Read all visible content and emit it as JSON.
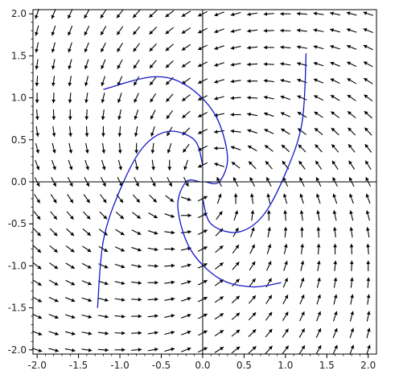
{
  "chart_data": {
    "type": "vector-field",
    "title": "",
    "xlabel": "",
    "ylabel": "",
    "xlim": [
      -2.05,
      2.1
    ],
    "ylim": [
      -2.05,
      2.05
    ],
    "x_ticks": [
      "-2.0",
      "-1.5",
      "-1.0",
      "-0.5",
      "0.0",
      "0.5",
      "1.0",
      "1.5",
      "2.0"
    ],
    "y_ticks": [
      "2.0",
      "1.5",
      "1.0",
      "0.5",
      "0.0",
      "-0.5",
      "-1.0",
      "-1.5",
      "-2.0"
    ],
    "x_tick_values": [
      -2.0,
      -1.5,
      -1.0,
      -0.5,
      0.0,
      0.5,
      1.0,
      1.5,
      2.0
    ],
    "y_tick_values": [
      2.0,
      1.5,
      1.0,
      0.5,
      0.0,
      -0.5,
      -1.0,
      -1.5,
      -2.0
    ],
    "field": {
      "dx": "-x - 2*y",
      "dy": "2*x - y",
      "grid_x_range": [
        -2.0,
        2.0
      ],
      "grid_y_range": [
        -2.0,
        2.0
      ],
      "grid_count": 21,
      "arrow_color": "#000000"
    },
    "series": [
      {
        "values": [
          [
            1.25,
            1.53
          ],
          [
            1.2,
            0.7
          ],
          [
            1.0,
            0.1
          ],
          [
            0.73,
            -0.4
          ],
          [
            0.42,
            -0.6
          ],
          [
            0.1,
            -0.5
          ],
          [
            0.0,
            -0.2
          ]
        ]
      },
      {
        "values": [
          [
            -1.2,
            1.1
          ],
          [
            -0.6,
            1.25
          ],
          [
            -0.2,
            1.15
          ],
          [
            0.15,
            0.8
          ],
          [
            0.3,
            0.3
          ],
          [
            0.2,
            0.0
          ],
          [
            0.03,
            0.0
          ]
        ]
      },
      {
        "values": [
          [
            -1.27,
            -1.5
          ],
          [
            -1.2,
            -0.7
          ],
          [
            -1.0,
            -0.1
          ],
          [
            -0.73,
            0.4
          ],
          [
            -0.42,
            0.6
          ],
          [
            -0.1,
            0.5
          ],
          [
            0.0,
            0.2
          ]
        ]
      },
      {
        "values": [
          [
            0.95,
            -1.2
          ],
          [
            0.6,
            -1.25
          ],
          [
            0.2,
            -1.15
          ],
          [
            -0.15,
            -0.8
          ],
          [
            -0.3,
            -0.3
          ],
          [
            -0.2,
            0.0
          ],
          [
            -0.03,
            0.0
          ]
        ]
      }
    ],
    "trajectory_color": "#1515c8"
  }
}
